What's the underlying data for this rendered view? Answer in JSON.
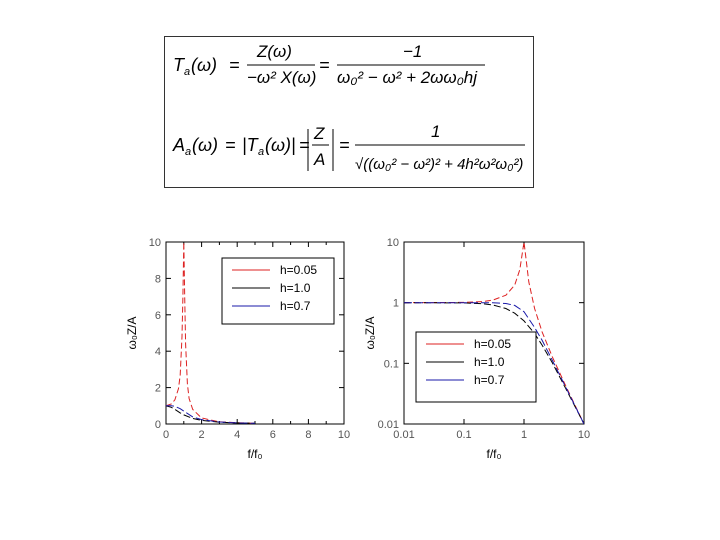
{
  "formulas": {
    "eq1": {
      "lhs": "T",
      "lhs_sub": "a",
      "arg": "(ω)",
      "frac1_num": "Z(ω)",
      "frac1_den": "−ω² X(ω)",
      "frac2_num": "−1",
      "frac2_den": "ω₀² − ω² + 2ωω₀hj"
    },
    "eq2": {
      "lhs": "A",
      "lhs_sub": "a",
      "arg": "(ω)",
      "abs": "|T",
      "abs_sub": "a",
      "abs_arg": "(ω)|",
      "frac1_num": "Z",
      "frac1_den": "A",
      "frac2_num": "1",
      "frac2_den": "√((ω₀² − ω²)² + 4h²ω²ω₀²)"
    }
  },
  "chart_data": [
    {
      "type": "line",
      "title": "",
      "xlabel": "f/f₀",
      "ylabel": "ω₀Z/A",
      "xlim": [
        0,
        10
      ],
      "ylim": [
        0,
        10
      ],
      "xticks": [
        "0",
        "2",
        "4",
        "6",
        "8",
        "10"
      ],
      "yticks": [
        "0",
        "2",
        "4",
        "6",
        "8",
        "10"
      ],
      "legend_position": "top-right",
      "series": [
        {
          "name": "h=0.05",
          "color": "#dd2222",
          "x": [
            0,
            0.3,
            0.5,
            0.7,
            0.8,
            0.9,
            0.95,
            1.0,
            1.05,
            1.1,
            1.2,
            1.3,
            1.5,
            2,
            3,
            4,
            5
          ],
          "y": [
            1.0,
            1.1,
            1.33,
            1.95,
            2.7,
            4.8,
            7.0,
            10.0,
            7.0,
            4.4,
            2.2,
            1.4,
            0.8,
            0.33,
            0.12,
            0.07,
            0.04
          ]
        },
        {
          "name": "h=1.0",
          "color": "#000000",
          "x": [
            0,
            0.3,
            0.5,
            0.8,
            1.0,
            1.5,
            2,
            3,
            4,
            5
          ],
          "y": [
            1.0,
            0.92,
            0.8,
            0.61,
            0.5,
            0.31,
            0.2,
            0.1,
            0.06,
            0.04
          ]
        },
        {
          "name": "h=0.7",
          "color": "#1a1aaa",
          "x": [
            0,
            0.3,
            0.5,
            0.8,
            1.0,
            1.5,
            2,
            3,
            4,
            5
          ],
          "y": [
            1.0,
            1.0,
            0.97,
            0.84,
            0.71,
            0.39,
            0.24,
            0.11,
            0.06,
            0.04
          ]
        }
      ]
    },
    {
      "type": "line",
      "title": "",
      "xlabel": "f/f₀",
      "ylabel": "ω₀Z/A",
      "xscale": "log",
      "yscale": "log",
      "xlim": [
        0.01,
        10
      ],
      "ylim": [
        0.01,
        10
      ],
      "xticks": [
        "0.01",
        "0.1",
        "1",
        "10"
      ],
      "yticks": [
        "0.01",
        "0.1",
        "1",
        "10"
      ],
      "legend_position": "bottom-left",
      "series": [
        {
          "name": "h=0.05",
          "color": "#dd2222",
          "x": [
            0.01,
            0.1,
            0.2,
            0.3,
            0.5,
            0.7,
            0.85,
            1.0,
            1.2,
            1.5,
            2,
            3,
            5,
            10
          ],
          "y": [
            1.0,
            1.01,
            1.04,
            1.1,
            1.33,
            1.95,
            3.5,
            10.0,
            2.2,
            0.8,
            0.33,
            0.125,
            0.042,
            0.01
          ]
        },
        {
          "name": "h=1.0",
          "color": "#000000",
          "x": [
            0.01,
            0.1,
            0.2,
            0.3,
            0.5,
            0.7,
            1.0,
            1.5,
            2,
            3,
            5,
            10
          ],
          "y": [
            1.0,
            0.99,
            0.96,
            0.92,
            0.8,
            0.67,
            0.5,
            0.31,
            0.2,
            0.1,
            0.038,
            0.01
          ]
        },
        {
          "name": "h=0.7",
          "color": "#1a1aaa",
          "x": [
            0.01,
            0.1,
            0.2,
            0.3,
            0.5,
            0.7,
            1.0,
            1.5,
            2,
            3,
            5,
            10
          ],
          "y": [
            1.0,
            1.0,
            1.0,
            1.0,
            0.97,
            0.9,
            0.71,
            0.39,
            0.24,
            0.11,
            0.04,
            0.01
          ]
        }
      ]
    }
  ]
}
